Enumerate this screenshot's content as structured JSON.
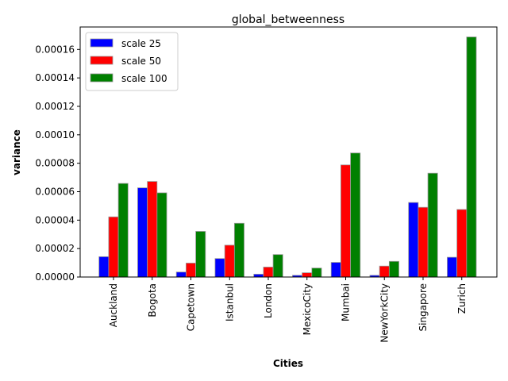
{
  "chart_data": {
    "type": "bar",
    "title": "global_betweenness",
    "xlabel": "Cities",
    "ylabel": "variance",
    "categories": [
      "Auckland",
      "Bogota",
      "Capetown",
      "Istanbul",
      "London",
      "MexicoCity",
      "Mumbai",
      "NewYorkCity",
      "Singapore",
      "Zurich"
    ],
    "series": [
      {
        "name": "scale 25",
        "color": "#0000ff",
        "values": [
          1.43e-05,
          6.27e-05,
          3.5e-06,
          1.3e-05,
          2e-06,
          1.2e-06,
          1.03e-05,
          1.2e-06,
          5.24e-05,
          1.39e-05
        ]
      },
      {
        "name": "scale 50",
        "color": "#ff0000",
        "values": [
          4.23e-05,
          6.72e-05,
          9.8e-06,
          2.24e-05,
          7e-06,
          3e-06,
          7.88e-05,
          7.7e-06,
          4.9e-05,
          4.75e-05
        ]
      },
      {
        "name": "scale 100",
        "color": "#008000",
        "values": [
          6.58e-05,
          5.92e-05,
          3.21e-05,
          3.78e-05,
          1.58e-05,
          6.3e-06,
          8.72e-05,
          1.1e-05,
          7.3e-05,
          0.0001688
        ]
      }
    ],
    "ylim": [
      0,
      0.0001758
    ],
    "yticks": [
      0,
      2e-05,
      4e-05,
      6e-05,
      8e-05,
      0.0001,
      0.00012,
      0.00014,
      0.00016
    ],
    "ytick_labels": [
      "0.00000",
      "0.00002",
      "0.00004",
      "0.00006",
      "0.00008",
      "0.00010",
      "0.00012",
      "0.00014",
      "0.00016"
    ],
    "legend_position": "top-left",
    "grid": false
  }
}
